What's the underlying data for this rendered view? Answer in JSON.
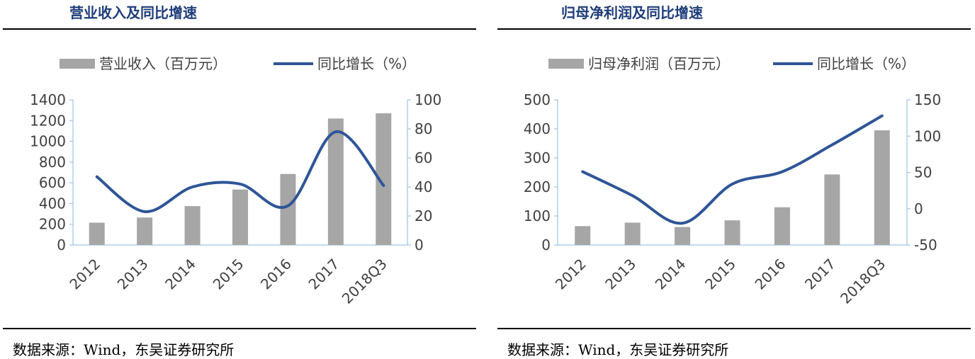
{
  "panels": [
    {
      "title": "营业收入及同比增速",
      "source": "数据来源：Wind，东吴证券研究所",
      "colors": {
        "bar": "#a6a6a6",
        "line": "#2f5597",
        "axis_line": "#9dc3e6",
        "text": "#404040"
      },
      "chart_data": {
        "type": "bar",
        "categories": [
          "2012",
          "2013",
          "2014",
          "2015",
          "2016",
          "2017",
          "2018Q3"
        ],
        "series": [
          {
            "name": "营业收入（百万元）",
            "type": "bar",
            "axis": "left",
            "values": [
              215,
              265,
              375,
              535,
              685,
              1220,
              1270
            ]
          },
          {
            "name": "同比增长（%）",
            "type": "line",
            "axis": "right",
            "values": [
              47,
              23,
              40,
              42,
              27,
              78,
              41
            ]
          }
        ],
        "y_left": {
          "ylim": [
            0,
            1400
          ],
          "ticks": [
            0,
            200,
            400,
            600,
            800,
            1000,
            1200,
            1400
          ]
        },
        "y_right": {
          "ylim": [
            0,
            100
          ],
          "ticks": [
            0,
            20,
            40,
            60,
            80,
            100
          ]
        },
        "legend_position": "top",
        "grid": false
      }
    },
    {
      "title": "归母净利润及同比增速",
      "source": "数据来源：Wind，东吴证券研究所",
      "colors": {
        "bar": "#a6a6a6",
        "line": "#2f5597",
        "axis_line": "#9dc3e6",
        "text": "#404040"
      },
      "chart_data": {
        "type": "bar",
        "categories": [
          "2012",
          "2013",
          "2014",
          "2015",
          "2016",
          "2017",
          "2018Q3"
        ],
        "series": [
          {
            "name": "归母净利润（百万元）",
            "type": "bar",
            "axis": "left",
            "values": [
              65,
              77,
              62,
              85,
              130,
              243,
              395
            ]
          },
          {
            "name": "同比增长（%）",
            "type": "line",
            "axis": "right",
            "values": [
              51,
              18,
              -20,
              34,
              51,
              88,
              128
            ]
          }
        ],
        "y_left": {
          "ylim": [
            0,
            500
          ],
          "ticks": [
            0,
            100,
            200,
            300,
            400,
            500
          ]
        },
        "y_right": {
          "ylim": [
            -50,
            150
          ],
          "ticks": [
            -50,
            0,
            50,
            100,
            150
          ]
        },
        "legend_position": "top",
        "grid": false
      }
    }
  ]
}
